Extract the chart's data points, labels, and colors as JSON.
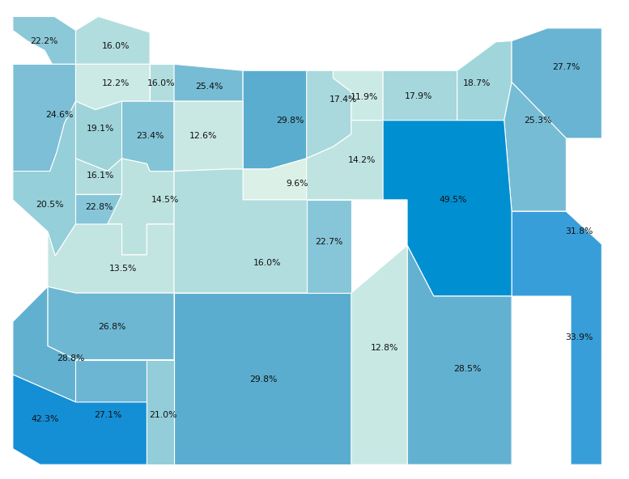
{
  "county_values": {
    "Clatsop": 22.2,
    "Columbia": 16.0,
    "Tillamook": 24.6,
    "Washington": 12.2,
    "Multnomah": 16.0,
    "Clackamas": 12.6,
    "Yamhill": 19.1,
    "Polk": 16.1,
    "Marion": 23.4,
    "Lincoln": 20.5,
    "Benton": 22.8,
    "Linn": 14.5,
    "Hood River": 25.4,
    "Wasco": 29.8,
    "Sherman": 17.4,
    "Gilliam": 11.9,
    "Morrow": 17.9,
    "Umatilla": 18.7,
    "Wallowa": 27.7,
    "Union": 25.3,
    "Baker": 31.8,
    "Lane": 13.5,
    "Douglas": 26.8,
    "Coos": 28.8,
    "Curry": 42.3,
    "Josephine": 27.1,
    "Jackson": 21.0,
    "Klamath": 29.8,
    "Lake": 12.8,
    "Harney": 28.5,
    "Malheur": 33.9,
    "Grant": 49.5,
    "Wheeler": 14.2,
    "Jefferson": 9.6,
    "Crook": 22.7,
    "Deschutes": 16.0
  },
  "min_val": 9.6,
  "max_val": 49.5,
  "background": "#ffffff",
  "edge_color": "#ffffff",
  "edge_width": 0.8,
  "font_size": 8.0,
  "font_color": "#1a1a1a"
}
